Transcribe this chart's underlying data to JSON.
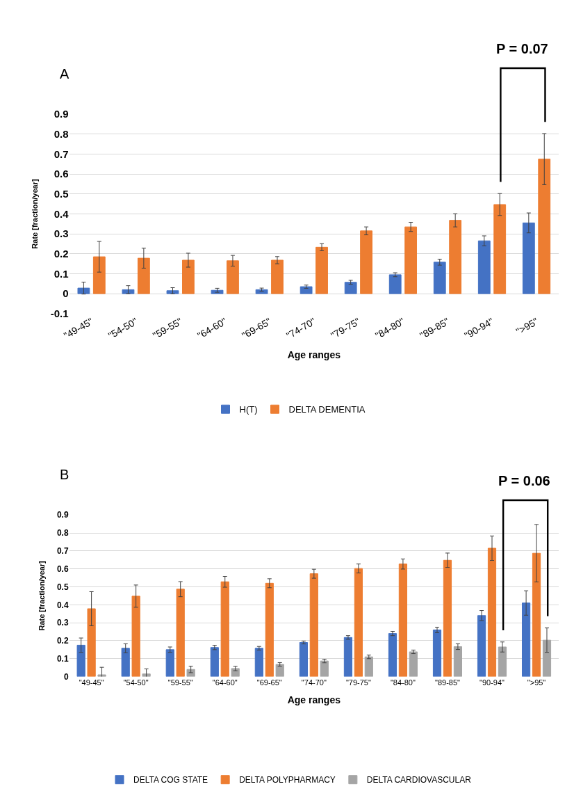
{
  "chart_data": [
    {
      "type": "bar",
      "title": "A",
      "xlabel": "Age ranges",
      "ylabel": "Rate [fraction/year]",
      "categories": [
        "\"49-45\"",
        "\"54-50\"",
        "\"59-55\"",
        "\"64-60\"",
        "\"69-65\"",
        "\"74-70\"",
        "\"79-75\"",
        "\"84-80\"",
        "\"89-85\"",
        "\"90-94\"",
        "\">95\""
      ],
      "series": [
        {
          "name": "H(T)",
          "color": "#4472c4",
          "values": [
            0.028,
            0.02,
            0.015,
            0.017,
            0.02,
            0.035,
            0.057,
            0.095,
            0.158,
            0.265,
            0.355
          ],
          "errors": [
            0.03,
            0.02,
            0.015,
            0.01,
            0.008,
            0.008,
            0.01,
            0.01,
            0.015,
            0.025,
            0.05
          ]
        },
        {
          "name": "DELTA DEMENTIA",
          "color": "#ed7d31",
          "values": [
            0.185,
            0.178,
            0.168,
            0.165,
            0.168,
            0.233,
            0.315,
            0.335,
            0.368,
            0.447,
            0.675
          ],
          "errors": [
            0.077,
            0.05,
            0.035,
            0.027,
            0.018,
            0.018,
            0.02,
            0.023,
            0.033,
            0.055,
            0.128
          ]
        }
      ],
      "ylim": [
        -0.1,
        0.9
      ],
      "yticks": [
        -0.1,
        0,
        0.1,
        0.2,
        0.3,
        0.4,
        0.5,
        0.6,
        0.7,
        0.8,
        0.9
      ],
      "grid": "y",
      "legend": "bottom",
      "annotations": [
        "P = 0.07"
      ]
    },
    {
      "type": "bar",
      "title": "B",
      "xlabel": "Age ranges",
      "ylabel": "Rate [fraction/year]",
      "categories": [
        "\"49-45\"",
        "\"54-50\"",
        "\"59-55\"",
        "\"64-60\"",
        "\"69-65\"",
        "\"74-70\"",
        "\"79-75\"",
        "\"84-80\"",
        "\"89-85\"",
        "\"90-94\"",
        "\">95\""
      ],
      "series": [
        {
          "name": "DELTA COG STATE",
          "color": "#4472c4",
          "values": [
            0.175,
            0.158,
            0.15,
            0.162,
            0.158,
            0.19,
            0.218,
            0.24,
            0.26,
            0.34,
            0.41
          ],
          "errors": [
            0.04,
            0.025,
            0.015,
            0.012,
            0.01,
            0.008,
            0.01,
            0.012,
            0.015,
            0.028,
            0.068
          ]
        },
        {
          "name": "DELTA POLYPHARMACY",
          "color": "#ed7d31",
          "values": [
            0.378,
            0.448,
            0.487,
            0.528,
            0.52,
            0.573,
            0.602,
            0.627,
            0.648,
            0.715,
            0.687
          ],
          "errors": [
            0.095,
            0.062,
            0.042,
            0.03,
            0.025,
            0.025,
            0.025,
            0.028,
            0.04,
            0.068,
            0.16
          ]
        },
        {
          "name": "DELTA CARDIOVASCULAR",
          "color": "#a5a5a5",
          "values": [
            0.01,
            0.015,
            0.04,
            0.045,
            0.068,
            0.087,
            0.11,
            0.138,
            0.167,
            0.165,
            0.203
          ],
          "errors": [
            0.042,
            0.028,
            0.018,
            0.012,
            0.01,
            0.01,
            0.01,
            0.01,
            0.016,
            0.028,
            0.068
          ]
        }
      ],
      "ylim": [
        0,
        0.9
      ],
      "yticks": [
        0,
        0.1,
        0.2,
        0.3,
        0.4,
        0.5,
        0.6,
        0.7,
        0.8,
        0.9
      ],
      "grid": "y",
      "legend": "bottom",
      "annotations": [
        "P = 0.06"
      ]
    }
  ]
}
